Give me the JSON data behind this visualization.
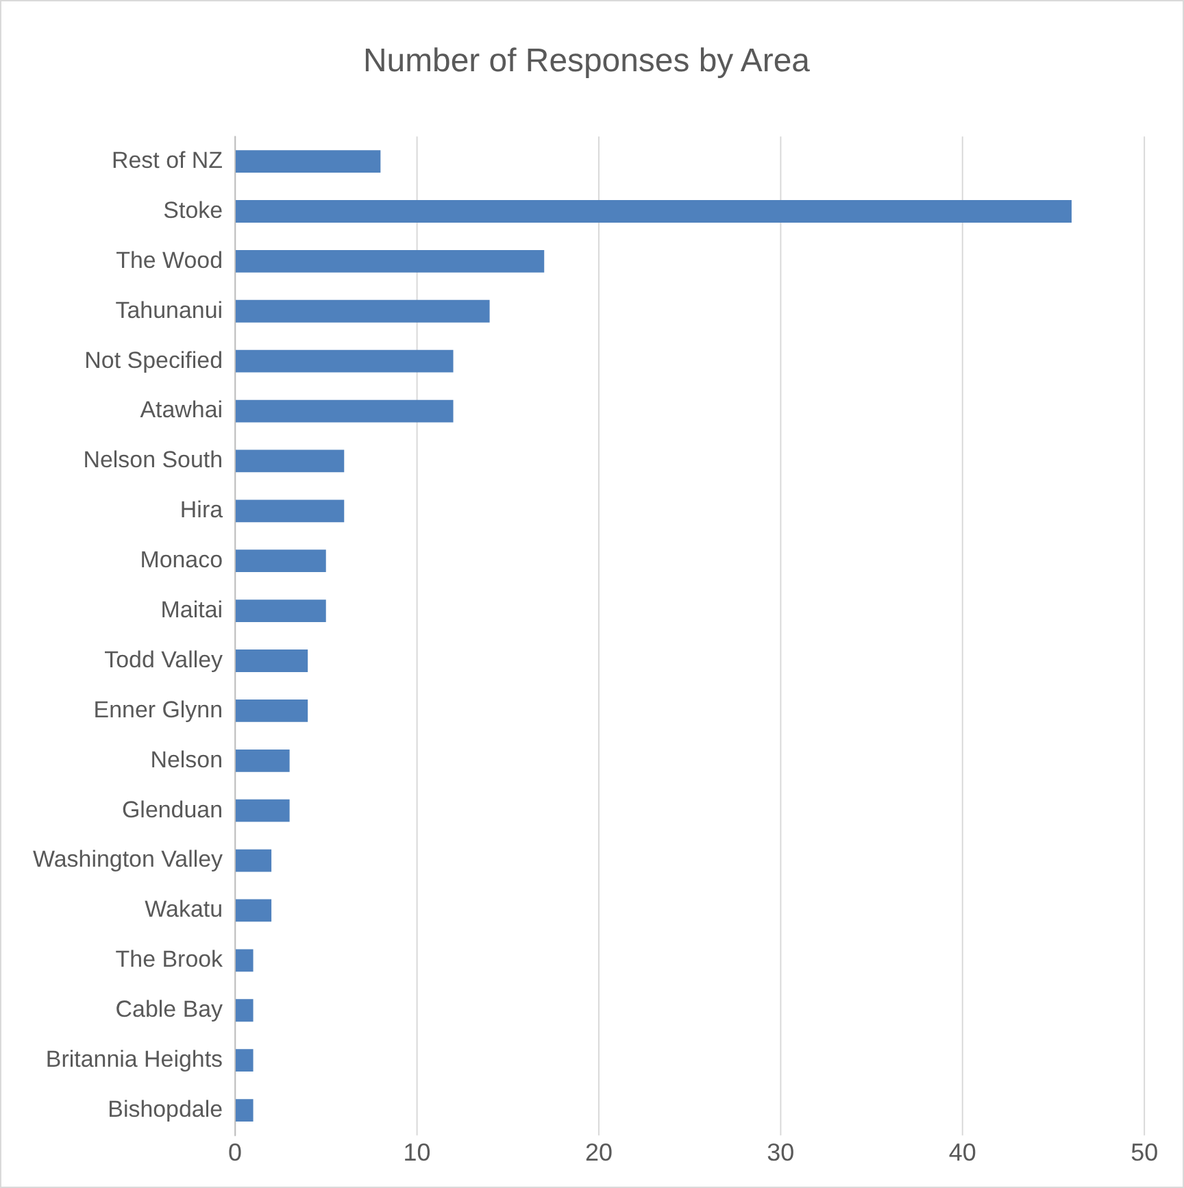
{
  "chart_data": {
    "type": "bar",
    "orientation": "horizontal",
    "title": "Number of Responses by Area",
    "categories": [
      "Rest of NZ",
      "Stoke",
      "The Wood",
      "Tahunanui",
      "Not Specified",
      "Atawhai",
      "Nelson South",
      "Hira",
      "Monaco",
      "Maitai",
      "Todd Valley",
      "Enner Glynn",
      "Nelson",
      "Glenduan",
      "Washington Valley",
      "Wakatu",
      "The Brook",
      "Cable Bay",
      "Britannia Heights",
      "Bishopdale"
    ],
    "values": [
      8,
      46,
      17,
      14,
      12,
      12,
      6,
      6,
      5,
      5,
      4,
      4,
      3,
      3,
      2,
      2,
      1,
      1,
      1,
      1
    ],
    "color": "#4f81bd",
    "xlim": [
      0,
      50
    ],
    "xticks": [
      0,
      10,
      20,
      30,
      40,
      50
    ],
    "grid": "x",
    "legend": false
  }
}
